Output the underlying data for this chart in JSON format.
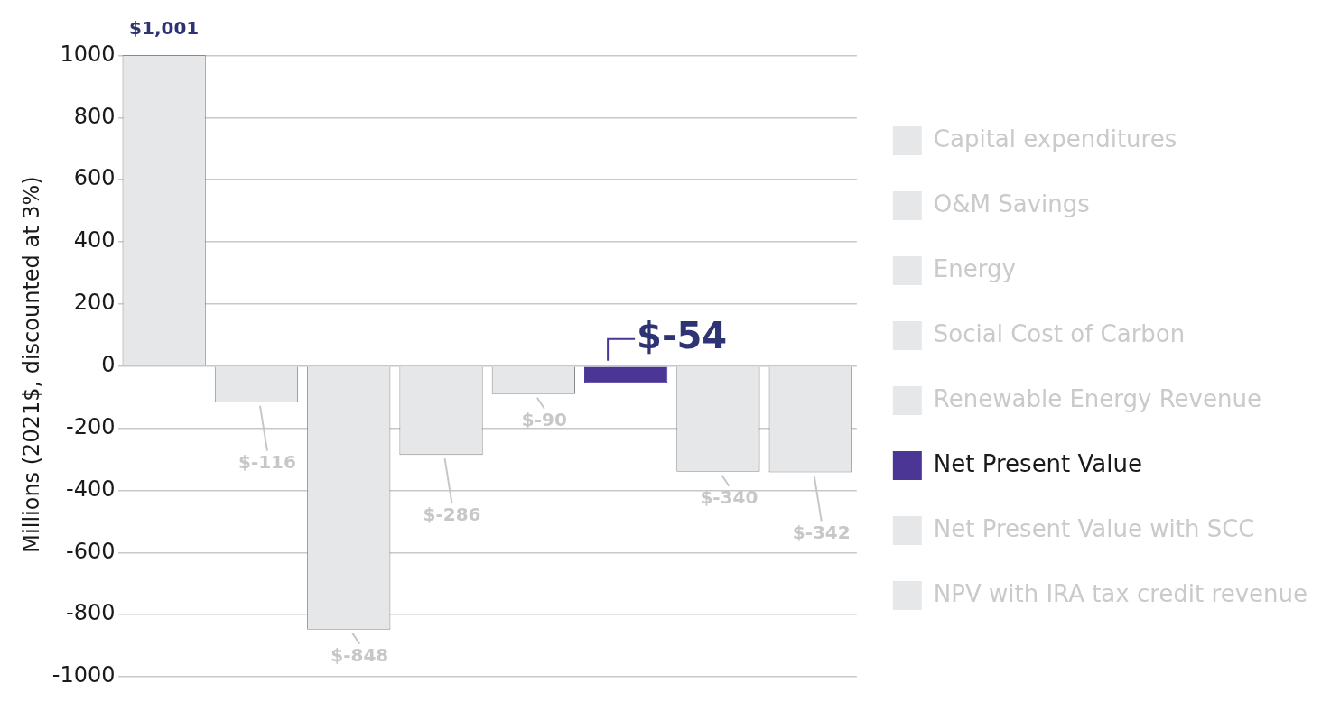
{
  "chart_data": {
    "type": "bar",
    "ylabel": "Millions (2021$, discounted at 3%)",
    "categories": [
      null,
      null,
      null,
      null,
      null,
      null,
      null,
      null
    ],
    "series": [
      {
        "name": "Capital expenditures",
        "color": "#e6e7e8",
        "values": [
          1001,
          null,
          null,
          null,
          null,
          null,
          null,
          null
        ],
        "value_labels": [
          "$1,001",
          null,
          null,
          null,
          null,
          null,
          null,
          null
        ]
      },
      {
        "name": "O&M Savings",
        "color": "#e6e7e8",
        "values": [
          null,
          -116,
          null,
          null,
          null,
          null,
          null,
          null
        ],
        "value_labels": [
          null,
          "$-116",
          null,
          null,
          null,
          null,
          null,
          null
        ]
      },
      {
        "name": "Energy",
        "color": "#e6e7e8",
        "values": [
          null,
          null,
          -848,
          null,
          null,
          null,
          null,
          null
        ],
        "value_labels": [
          null,
          null,
          "$-848",
          null,
          null,
          null,
          null,
          null
        ]
      },
      {
        "name": "Social Cost of Carbon",
        "color": "#e6e7e8",
        "values": [
          null,
          null,
          null,
          -286,
          null,
          null,
          null,
          null
        ],
        "value_labels": [
          null,
          null,
          null,
          "$-286",
          null,
          null,
          null,
          null
        ]
      },
      {
        "name": "Renewable Energy Revenue",
        "color": "#e6e7e8",
        "values": [
          null,
          null,
          null,
          null,
          -90,
          null,
          null,
          null
        ],
        "value_labels": [
          null,
          null,
          null,
          null,
          "$-90",
          null,
          null,
          null
        ]
      },
      {
        "name": "Net Present Value",
        "color": "#4b3696",
        "values": [
          null,
          null,
          null,
          null,
          null,
          -54,
          null,
          null
        ],
        "value_labels": [
          null,
          null,
          null,
          null,
          null,
          "$-54",
          null,
          null
        ]
      },
      {
        "name": "Net Present Value with SCC",
        "color": "#e6e7e8",
        "values": [
          null,
          null,
          null,
          null,
          null,
          null,
          -340,
          null
        ],
        "value_labels": [
          null,
          null,
          null,
          null,
          null,
          null,
          "$-340",
          null
        ]
      },
      {
        "name": "NPV with IRA tax credit revenue",
        "color": "#e6e7e8",
        "values": [
          null,
          null,
          null,
          null,
          null,
          null,
          null,
          -342
        ],
        "value_labels": [
          null,
          null,
          null,
          null,
          null,
          null,
          null,
          "$-342"
        ]
      }
    ],
    "ylim": [
      -1000,
      1010
    ],
    "yticks": [
      -1000,
      -800,
      -600,
      -400,
      -200,
      0,
      200,
      400,
      600,
      800,
      1000
    ],
    "grid": "y",
    "legend": "right"
  }
}
